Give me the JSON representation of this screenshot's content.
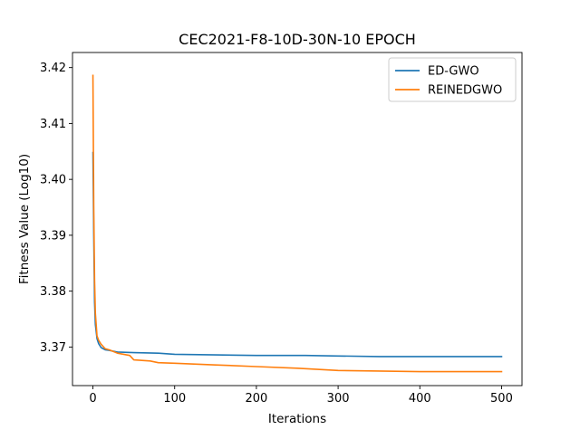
{
  "chart_data": {
    "type": "line",
    "title": "CEC2021-F8-10D-30N-10 EPOCH",
    "xlabel": "Iterations",
    "ylabel": "Fitness Value (Log10)",
    "xlim": [
      -25,
      525
    ],
    "ylim": [
      3.3631,
      3.4227
    ],
    "xticks": [
      0,
      100,
      200,
      300,
      400,
      500
    ],
    "xtick_labels": [
      "0",
      "100",
      "200",
      "300",
      "400",
      "500"
    ],
    "yticks": [
      3.37,
      3.38,
      3.39,
      3.4,
      3.41,
      3.42
    ],
    "ytick_labels": [
      "3.37",
      "3.38",
      "3.39",
      "3.40",
      "3.41",
      "3.42"
    ],
    "grid": false,
    "legend_position": "top-right",
    "series": [
      {
        "name": "ED-GWO",
        "color": "#1f77b4",
        "points": [
          [
            0,
            3.4048
          ],
          [
            1,
            3.39
          ],
          [
            2,
            3.378
          ],
          [
            3,
            3.374
          ],
          [
            5,
            3.3715
          ],
          [
            7,
            3.3706
          ],
          [
            10,
            3.3699
          ],
          [
            15,
            3.3695
          ],
          [
            20,
            3.3694
          ],
          [
            30,
            3.3691
          ],
          [
            50,
            3.369
          ],
          [
            80,
            3.3689
          ],
          [
            100,
            3.3687
          ],
          [
            150,
            3.3686
          ],
          [
            200,
            3.3685
          ],
          [
            260,
            3.3685
          ],
          [
            300,
            3.3684
          ],
          [
            350,
            3.3683
          ],
          [
            400,
            3.3683
          ],
          [
            450,
            3.3683
          ],
          [
            500,
            3.3683
          ]
        ]
      },
      {
        "name": "REINEDGWO",
        "color": "#ff7f0e",
        "points": [
          [
            0,
            3.4186
          ],
          [
            1,
            3.395
          ],
          [
            2,
            3.382
          ],
          [
            3,
            3.376
          ],
          [
            5,
            3.372
          ],
          [
            7,
            3.3712
          ],
          [
            10,
            3.3705
          ],
          [
            15,
            3.3697
          ],
          [
            20,
            3.3695
          ],
          [
            30,
            3.3689
          ],
          [
            45,
            3.3685
          ],
          [
            50,
            3.3677
          ],
          [
            70,
            3.3675
          ],
          [
            80,
            3.3672
          ],
          [
            100,
            3.3671
          ],
          [
            150,
            3.3668
          ],
          [
            200,
            3.3665
          ],
          [
            250,
            3.3662
          ],
          [
            300,
            3.3658
          ],
          [
            350,
            3.3657
          ],
          [
            400,
            3.3656
          ],
          [
            450,
            3.3656
          ],
          [
            500,
            3.3656
          ]
        ]
      }
    ]
  }
}
